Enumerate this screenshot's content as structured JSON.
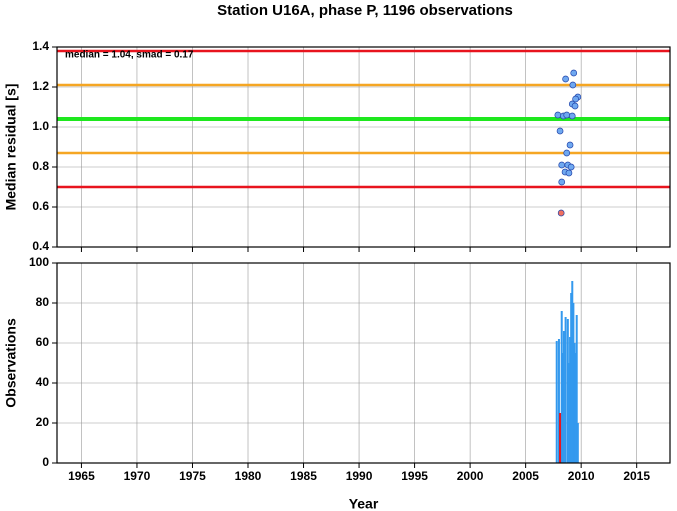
{
  "chart_data": [
    {
      "type": "scatter",
      "title": "Station U16A, phase P, 1196 observations",
      "ylabel": "Median residual [s]",
      "annotation": "median = 1.04, smad = 0.17",
      "xlim": [
        1962.8,
        2018
      ],
      "xticks": [
        1965,
        1970,
        1975,
        1980,
        1985,
        1990,
        1995,
        2000,
        2005,
        2010,
        2015
      ],
      "show_xtick_labels": false,
      "ylim": [
        0.4,
        1.4
      ],
      "yticks": [
        0.4,
        0.6,
        0.8,
        {
          "value": 1,
          "label": "1.0"
        },
        1.2,
        1.4
      ],
      "grid": true,
      "hlines": [
        {
          "value": 1.38,
          "color": "#e8141e"
        },
        {
          "value": 1.21,
          "color": "#f5a623"
        },
        {
          "value": 1.04,
          "color": "#1ee81e"
        },
        {
          "value": 0.87,
          "color": "#f5a623"
        },
        {
          "value": 0.7,
          "color": "#e8141e"
        }
      ],
      "series": [
        {
          "color": "#6fa8f0",
          "x": [
            2009.33,
            2008.6,
            2009.25,
            2009.7,
            2009.5,
            2009.2,
            2009.45,
            2007.9,
            2008.4,
            2008.7,
            2009.2,
            2008.1,
            2009.0,
            2008.7,
            2008.25,
            2008.8,
            2009.1,
            2008.55,
            2008.9,
            2008.25
          ],
          "values": [
            1.27,
            1.24,
            1.21,
            1.15,
            1.14,
            1.115,
            1.105,
            1.06,
            1.055,
            1.06,
            1.055,
            0.98,
            0.91,
            0.87,
            0.81,
            0.81,
            0.8,
            0.775,
            0.77,
            0.725
          ]
        },
        {
          "color": "#f07060",
          "x": [
            2008.2
          ],
          "values": [
            0.57
          ]
        }
      ]
    },
    {
      "type": "bar",
      "ylabel": "Observations",
      "xlabel": "Year",
      "xlim": [
        1962.8,
        2018
      ],
      "xticks": [
        1965,
        1970,
        1975,
        1980,
        1985,
        1990,
        1995,
        2000,
        2005,
        2010,
        2015
      ],
      "show_xtick_labels": true,
      "ylim": [
        0,
        100
      ],
      "yticks": [
        0,
        20,
        40,
        60,
        80,
        100
      ],
      "grid": true,
      "series": [
        {
          "color": "#3399ee",
          "x": [
            2007.8,
            2008.0,
            2008.25,
            2008.35,
            2008.45,
            2008.6,
            2008.8,
            2008.9,
            2009.0,
            2009.1,
            2009.2,
            2009.3,
            2009.4,
            2009.5,
            2009.6,
            2009.7
          ],
          "values": [
            61,
            62,
            76,
            55,
            66,
            73,
            72,
            50,
            63,
            85,
            91,
            80,
            60,
            55,
            74,
            20
          ]
        },
        {
          "color": "#e8141e",
          "x": [
            2008.1
          ],
          "values": [
            25
          ]
        }
      ]
    }
  ]
}
